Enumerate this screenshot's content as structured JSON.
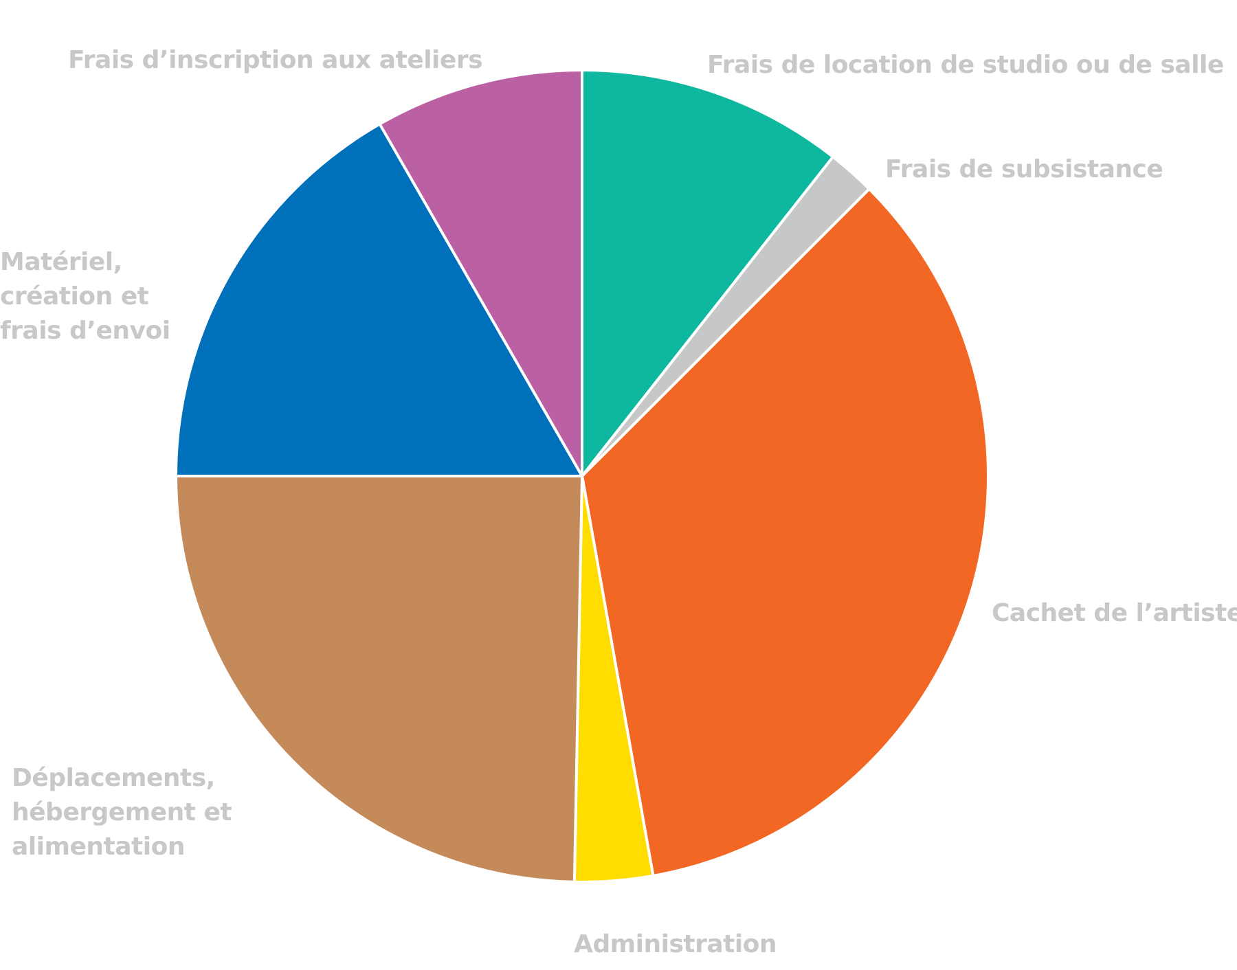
{
  "chart_data": {
    "type": "pie",
    "categories": [
      "Frais de location de studio ou de salle",
      "Frais de subsistance",
      "Cachet de l’artiste",
      "Administration",
      "Déplacements, hébergement et alimentation",
      "Matériel, création et frais d’envoi",
      "Frais d’inscription aux ateliers"
    ],
    "values": [
      10.6,
      1.9,
      34.7,
      3.1,
      24.7,
      16.7,
      8.3
    ],
    "colors": [
      "#0db89e",
      "#c6c7c8",
      "#f26724",
      "#ffdd00",
      "#c48a5a",
      "#0070bb",
      "#bc60a4"
    ]
  }
}
